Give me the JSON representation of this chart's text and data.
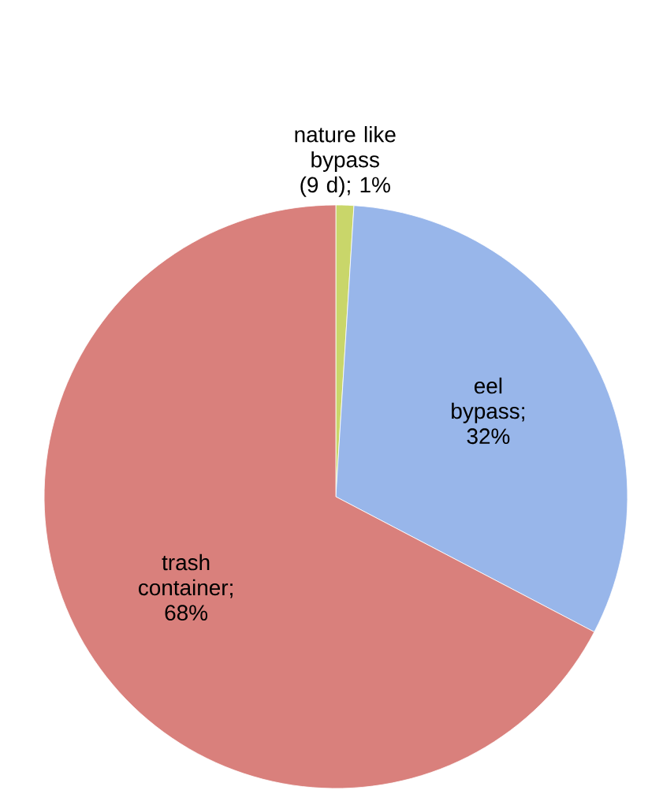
{
  "chart_data": {
    "type": "pie",
    "categories": [
      "nature like bypass (9 d)",
      "eel bypass",
      "trash container"
    ],
    "values": [
      1,
      32,
      68
    ],
    "colors": [
      "#c9d66a",
      "#98b6ea",
      "#d9807c"
    ],
    "value_labels": [
      "; 1%",
      "; 32%",
      "; 68%"
    ]
  }
}
